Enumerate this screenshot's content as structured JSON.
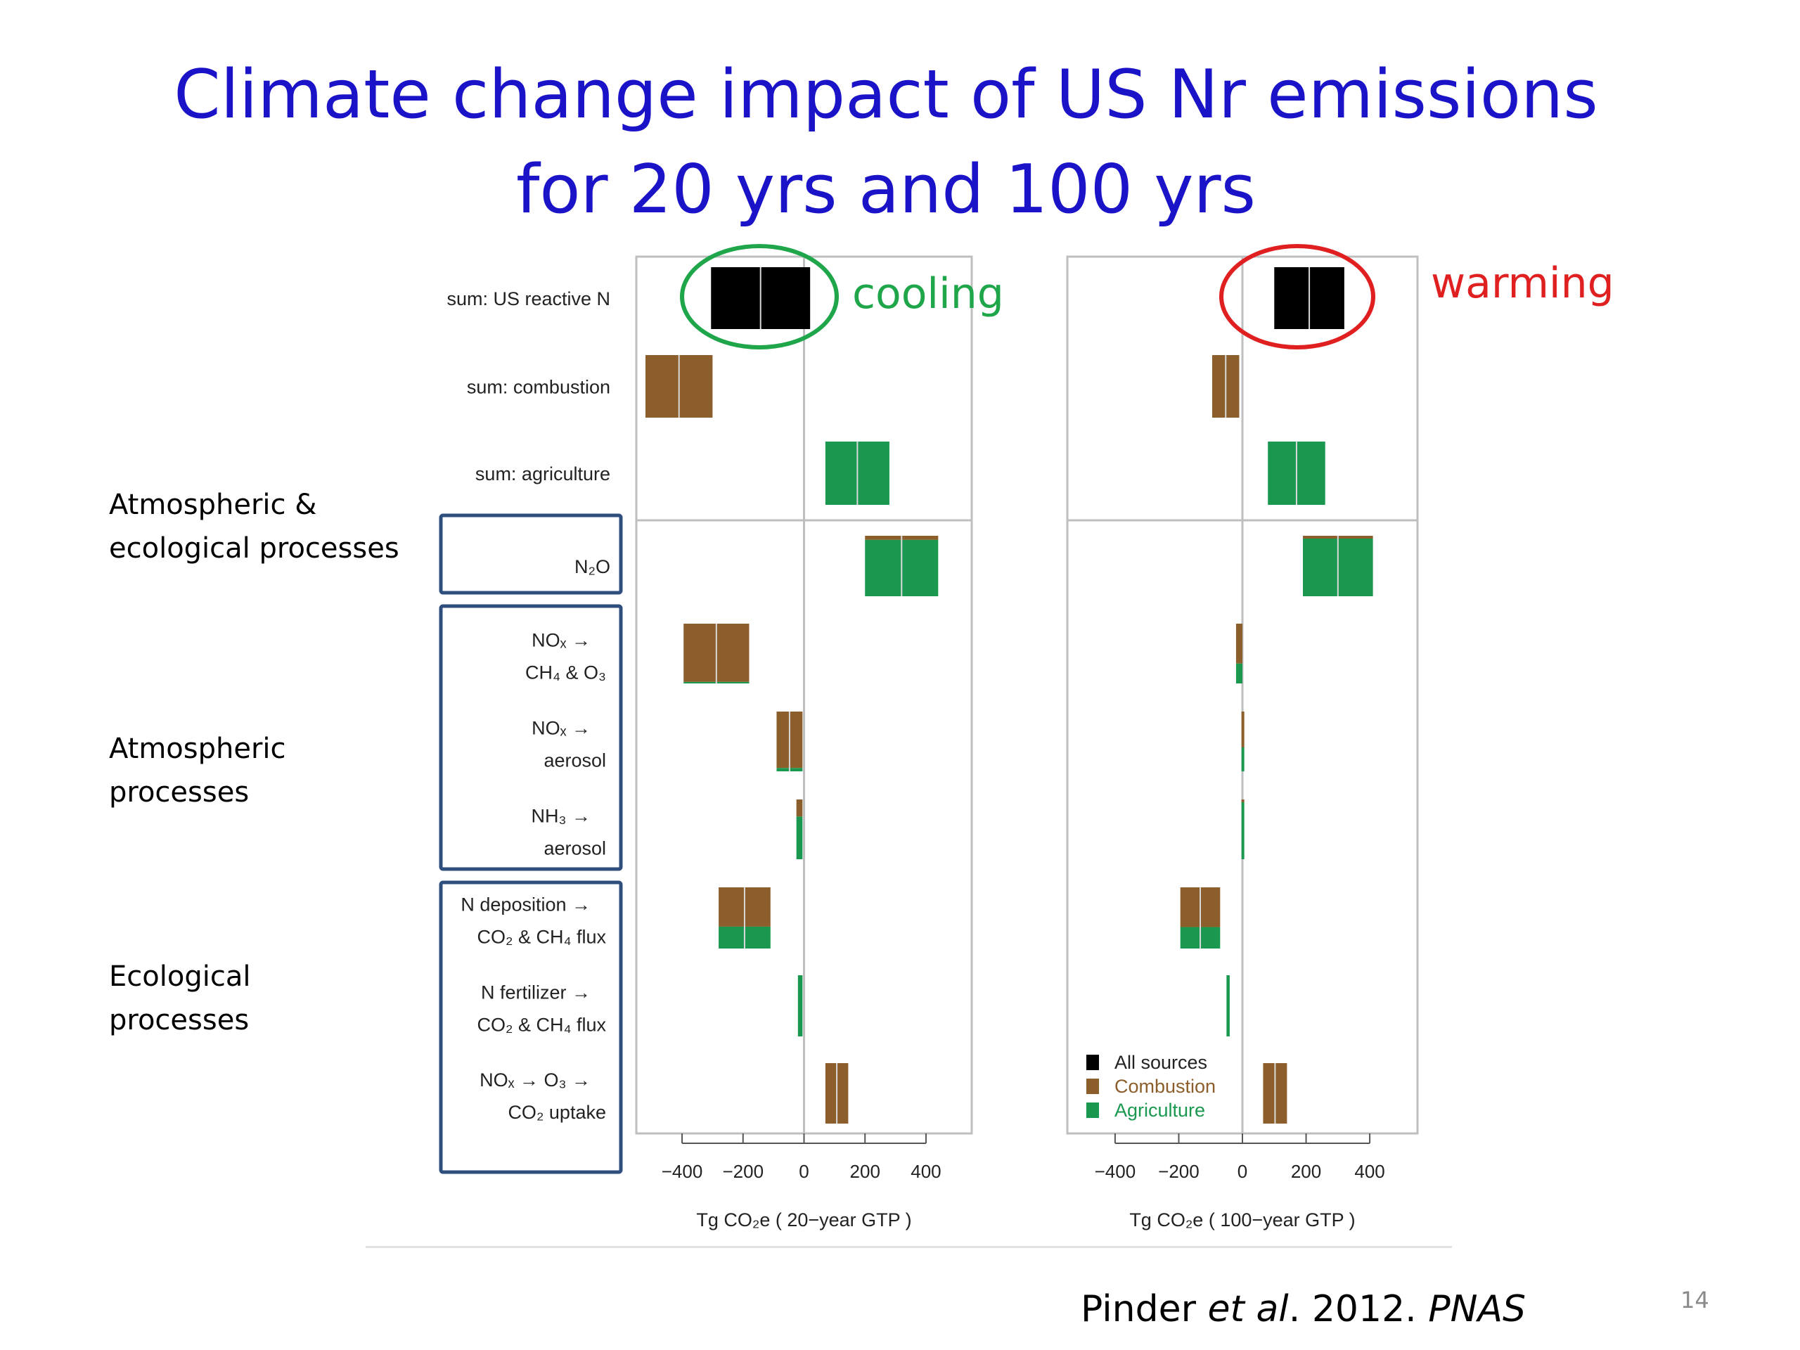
{
  "slide": {
    "title_line1": "Climate change impact of US Nr emissions",
    "title_line2": "for 20 yrs and 100 yrs",
    "annotations": {
      "cooling": "cooling",
      "warming": "warming",
      "cooling_color": "#1fa64a",
      "warming_color": "#e02020"
    },
    "process_groups": [
      {
        "line1": "Atmospheric &",
        "line2": "ecological processes"
      },
      {
        "line1": "Atmospheric",
        "line2": "processes"
      },
      {
        "line1": "Ecological",
        "line2": "processes"
      }
    ],
    "citation": {
      "author": "Pinder ",
      "etal": "et al",
      "year": ". 2012. ",
      "journal": "PNAS"
    },
    "slide_number": "14"
  },
  "chart_data": [
    {
      "type": "bar",
      "xlabel": "Tg CO₂e ( 20−year GTP )",
      "xlim": [
        -550,
        550
      ],
      "xticks": [
        -400,
        -200,
        0,
        200,
        400
      ],
      "tick_labels": [
        "−400",
        "−200",
        "0",
        "200",
        "400"
      ],
      "categories": [
        [
          "sum: US reactive N"
        ],
        [
          "sum: combustion"
        ],
        [
          "sum: agriculture"
        ],
        [
          "N₂O"
        ],
        [
          "NOₓ →",
          "CH₄ & O₃"
        ],
        [
          "NOₓ →",
          "aerosol"
        ],
        [
          "NH₃ →",
          "aerosol"
        ],
        [
          "N deposition →",
          "CO₂ & CH₄ flux"
        ],
        [
          "N fertilizer →",
          "CO₂ & CH₄ flux"
        ],
        [
          "NOₓ → O₃ →",
          "CO₂ uptake"
        ]
      ],
      "series": [
        {
          "name": "All sources",
          "values": [
            -305,
            null,
            null,
            null,
            null,
            null,
            null,
            null,
            null,
            null
          ]
        },
        {
          "name": "Combustion",
          "values": [
            null,
            -520,
            null,
            30,
            -385,
            -85,
            10,
            -180,
            null,
            75
          ]
        },
        {
          "name": "Agriculture",
          "values": [
            null,
            null,
            280,
            410,
            -10,
            -5,
            -25,
            -100,
            -20,
            null
          ]
        }
      ],
      "ranges": [
        [
          -305,
          20
        ],
        [
          -520,
          -300
        ],
        [
          70,
          280
        ],
        [
          200,
          440
        ],
        [
          -395,
          -180
        ],
        [
          -90,
          -5
        ],
        [
          -25,
          -5
        ],
        [
          -280,
          -110
        ],
        [
          -20,
          -5
        ],
        [
          70,
          145
        ]
      ]
    },
    {
      "type": "bar",
      "xlabel": "Tg CO₂e ( 100−year GTP )",
      "xlim": [
        -550,
        550
      ],
      "xticks": [
        -400,
        -200,
        0,
        200,
        400
      ],
      "tick_labels": [
        "−400",
        "−200",
        "0",
        "200",
        "400"
      ],
      "series": [
        {
          "name": "All sources",
          "values": [
            320,
            null,
            null,
            null,
            null,
            null,
            null,
            null,
            null,
            null
          ]
        },
        {
          "name": "Combustion",
          "values": [
            null,
            -95,
            null,
            20,
            -10,
            -3,
            0,
            -130,
            null,
            140
          ]
        },
        {
          "name": "Agriculture",
          "values": [
            null,
            null,
            260,
            410,
            -5,
            -2,
            -3,
            -70,
            -40,
            null
          ]
        }
      ],
      "ranges": [
        [
          100,
          320
        ],
        [
          -95,
          -10
        ],
        [
          80,
          260
        ],
        [
          190,
          410
        ],
        [
          -20,
          0
        ],
        [
          -3,
          0
        ],
        [
          -3,
          0
        ],
        [
          -195,
          -70
        ],
        [
          -50,
          -40
        ],
        [
          65,
          140
        ]
      ],
      "legend": {
        "position": "bottom-left",
        "entries": [
          "All sources",
          "Combustion",
          "Agriculture"
        ],
        "colors": [
          "#000000",
          "#8b5e2b",
          "#1a9850"
        ]
      }
    }
  ]
}
